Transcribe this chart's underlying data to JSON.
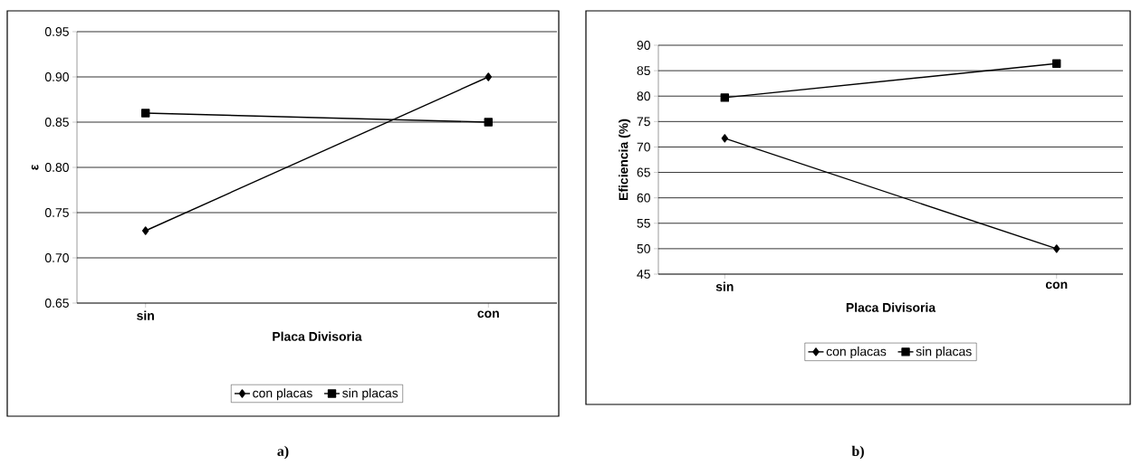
{
  "chart_data": [
    {
      "type": "line",
      "categories": [
        "sin",
        "con"
      ],
      "xlabel": "Placa Divisoria",
      "ylabel": "ε",
      "ylim": [
        0.65,
        0.95
      ],
      "yticks": [
        {
          "value": 0.65,
          "label": "0.65"
        },
        {
          "value": 0.7,
          "label": "0.70"
        },
        {
          "value": 0.75,
          "label": "0.75"
        },
        {
          "value": 0.8,
          "label": "0.80"
        },
        {
          "value": 0.85,
          "label": "0.85"
        },
        {
          "value": 0.9,
          "label": "0.90"
        },
        {
          "value": 0.95,
          "label": "0.95"
        }
      ],
      "grid": "y",
      "legend": "bottom",
      "line_style": "solid",
      "series": [
        {
          "name": "con placas",
          "color": "#000000",
          "marker": "diamond",
          "values": [
            0.73,
            0.9
          ]
        },
        {
          "name": "sin placas",
          "color": "#000000",
          "marker": "square",
          "values": [
            0.86,
            0.85
          ]
        }
      ],
      "annotations": [
        "a)"
      ]
    },
    {
      "type": "line",
      "categories": [
        "sin",
        "con"
      ],
      "xlabel": "Placa Divisoria",
      "ylabel": "Eficiencia (%)",
      "ylim": [
        45,
        90
      ],
      "yticks": [
        45,
        50,
        55,
        60,
        65,
        70,
        75,
        80,
        85,
        90
      ],
      "grid": "y",
      "legend": "bottom",
      "line_style": "solid",
      "series": [
        {
          "name": "con placas",
          "color": "#000000",
          "marker": "diamond",
          "values": [
            71.7,
            50
          ]
        },
        {
          "name": "sin placas",
          "color": "#000000",
          "marker": "square",
          "values": [
            79.7,
            86.4
          ]
        }
      ],
      "annotations": [
        "b)"
      ]
    }
  ]
}
